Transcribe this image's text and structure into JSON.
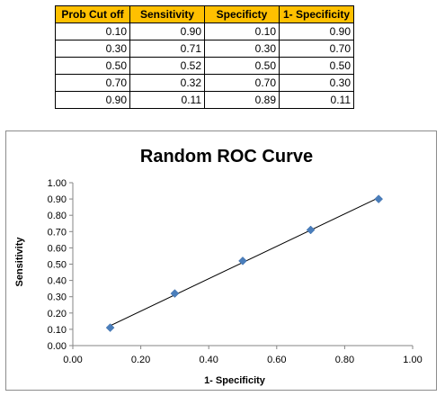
{
  "table": {
    "headers": [
      "Prob Cut off",
      "Sensitivity",
      "Specificty",
      "1- Specificity"
    ],
    "rows": [
      [
        "0.10",
        "0.90",
        "0.10",
        "0.90"
      ],
      [
        "0.30",
        "0.71",
        "0.30",
        "0.70"
      ],
      [
        "0.50",
        "0.52",
        "0.50",
        "0.50"
      ],
      [
        "0.70",
        "0.32",
        "0.70",
        "0.30"
      ],
      [
        "0.90",
        "0.11",
        "0.89",
        "0.11"
      ]
    ],
    "header_color": "#ffc000"
  },
  "chart_data": {
    "type": "scatter",
    "title": "Random ROC Curve",
    "xlabel": "1- Specificity",
    "ylabel": "Sensitivity",
    "xlim": [
      0,
      1
    ],
    "ylim": [
      0,
      1
    ],
    "x_ticks": [
      "0.00",
      "0.20",
      "0.40",
      "0.60",
      "0.80",
      "1.00"
    ],
    "y_ticks": [
      "0.00",
      "0.10",
      "0.20",
      "0.30",
      "0.40",
      "0.50",
      "0.60",
      "0.70",
      "0.80",
      "0.90",
      "1.00"
    ],
    "points": [
      {
        "x": 0.9,
        "y": 0.9
      },
      {
        "x": 0.7,
        "y": 0.71
      },
      {
        "x": 0.5,
        "y": 0.52
      },
      {
        "x": 0.3,
        "y": 0.32
      },
      {
        "x": 0.11,
        "y": 0.11
      }
    ],
    "trendline": "linear",
    "marker": "diamond",
    "marker_color": "#4a7ebb",
    "grid": false,
    "legend": "none"
  }
}
